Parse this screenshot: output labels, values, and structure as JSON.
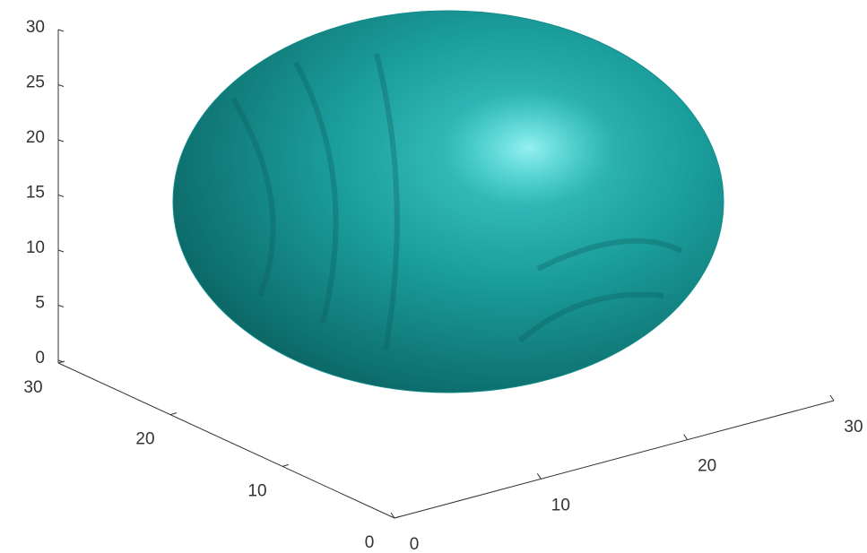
{
  "chart_data": {
    "type": "surface",
    "color": "#138c8c",
    "xlim": [
      0,
      30
    ],
    "xticks": [
      0,
      10,
      20,
      30
    ],
    "ylim": [
      0,
      30
    ],
    "yticks": [
      0,
      10,
      20,
      30
    ],
    "zlim": [
      0,
      30
    ],
    "zticks": [
      0,
      5,
      10,
      15,
      20,
      25,
      30
    ]
  }
}
